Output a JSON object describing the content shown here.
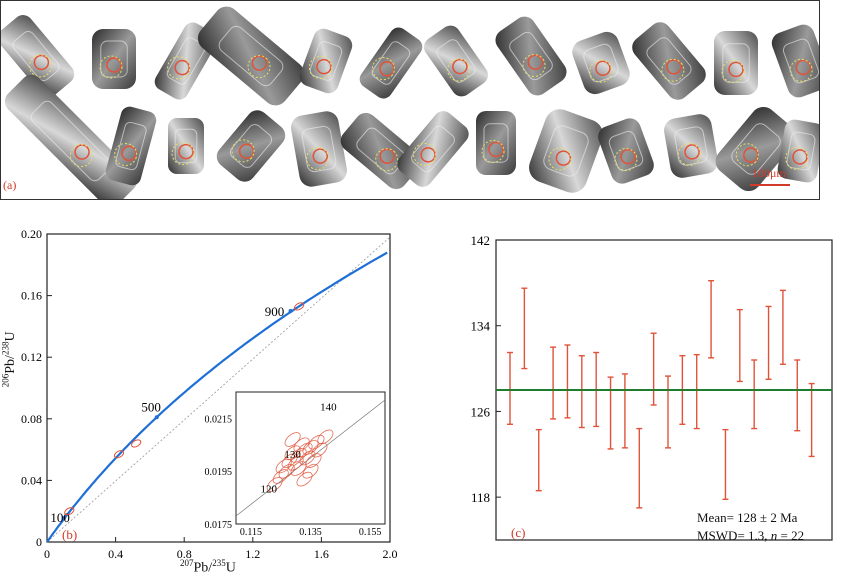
{
  "panel_a": {
    "label": "(a)",
    "scale_bar": "100μm"
  },
  "panel_b": {
    "label": "(b)",
    "concordia_ages": [
      "100",
      "500",
      "900"
    ],
    "x_ticks": [
      "0",
      "0.4",
      "0.8",
      "1.2",
      "1.6",
      "2.0"
    ],
    "y_ticks": [
      "0",
      "0.04",
      "0.08",
      "0.12",
      "0.16",
      "0.20"
    ],
    "inset": {
      "ages": [
        "120",
        "130",
        "140"
      ],
      "x_ticks": [
        "0.115",
        "0.135",
        "0.155"
      ],
      "y_ticks": [
        "0.0175",
        "0.0195",
        "0.0215"
      ]
    },
    "colors": {
      "concordia": "#1f6fd6",
      "ellipse": "#e0533a",
      "reference": "#999999"
    }
  },
  "panel_c": {
    "label": "(c)",
    "y_ticks": [
      "142",
      "134",
      "126",
      "118"
    ],
    "mean_text": "Mean= 128 ± 2 Ma",
    "mswd_prefix": "MSWD= 1.3, ",
    "mswd_n_symbol": "n",
    "mswd_n_value": " = 22",
    "colors": {
      "bars": "#e0533a",
      "mean_line": "#1e7d2f"
    }
  },
  "chart_data": [
    {
      "type": "scatter",
      "xlim": [
        0,
        2.0
      ],
      "ylim": [
        0,
        0.2
      ],
      "concordia_age_markers": [
        {
          "age": "100",
          "x": 0.1,
          "y": 0.0156
        },
        {
          "age": "500",
          "x": 0.64,
          "y": 0.081
        },
        {
          "age": "900",
          "x": 1.42,
          "y": 0.15
        }
      ],
      "series": [
        {
          "values": [
            {
              "x": 0.13,
              "y": 0.02
            },
            {
              "x": 0.42,
              "y": 0.057
            },
            {
              "x": 0.52,
              "y": 0.064
            },
            {
              "x": 1.47,
              "y": 0.153
            }
          ]
        }
      ]
    },
    {
      "type": "scatter",
      "xlim": [
        0.11,
        0.16
      ],
      "ylim": [
        0.0175,
        0.0225
      ],
      "series": [
        {
          "values": [
            {
              "x": 0.128,
              "y": 0.0199
            },
            {
              "x": 0.131,
              "y": 0.0201
            },
            {
              "x": 0.133,
              "y": 0.0203
            },
            {
              "x": 0.126,
              "y": 0.0197
            },
            {
              "x": 0.135,
              "y": 0.0204
            },
            {
              "x": 0.13,
              "y": 0.0198
            },
            {
              "x": 0.137,
              "y": 0.0206
            },
            {
              "x": 0.129,
              "y": 0.0202
            },
            {
              "x": 0.134,
              "y": 0.02
            },
            {
              "x": 0.127,
              "y": 0.0195
            },
            {
              "x": 0.138,
              "y": 0.0203
            },
            {
              "x": 0.132,
              "y": 0.0205
            },
            {
              "x": 0.125,
              "y": 0.0193
            },
            {
              "x": 0.136,
              "y": 0.0199
            },
            {
              "x": 0.123,
              "y": 0.019
            },
            {
              "x": 0.14,
              "y": 0.0208
            },
            {
              "x": 0.131,
              "y": 0.0196
            },
            {
              "x": 0.133,
              "y": 0.0192
            },
            {
              "x": 0.129,
              "y": 0.0207
            },
            {
              "x": 0.135,
              "y": 0.0195
            }
          ]
        }
      ]
    },
    {
      "type": "bar",
      "ylim": [
        114,
        142
      ],
      "mean": 128,
      "series": [
        {
          "values": [
            {
              "lo": 124.8,
              "hi": 131.5
            },
            {
              "lo": 130.0,
              "hi": 137.5
            },
            {
              "lo": 118.6,
              "hi": 124.3
            },
            {
              "lo": 125.3,
              "hi": 132.0
            },
            {
              "lo": 125.4,
              "hi": 132.2
            },
            {
              "lo": 124.5,
              "hi": 131.2
            },
            {
              "lo": 124.6,
              "hi": 131.5
            },
            {
              "lo": 122.5,
              "hi": 129.2
            },
            {
              "lo": 122.6,
              "hi": 129.5
            },
            {
              "lo": 117.0,
              "hi": 124.4
            },
            {
              "lo": 126.6,
              "hi": 133.3
            },
            {
              "lo": 122.6,
              "hi": 129.3
            },
            {
              "lo": 124.8,
              "hi": 131.2
            },
            {
              "lo": 124.4,
              "hi": 131.3
            },
            {
              "lo": 131.0,
              "hi": 138.2
            },
            {
              "lo": 117.8,
              "hi": 124.3
            },
            {
              "lo": 128.8,
              "hi": 135.5
            },
            {
              "lo": 124.4,
              "hi": 130.8
            },
            {
              "lo": 129.0,
              "hi": 135.8
            },
            {
              "lo": 130.4,
              "hi": 137.3
            },
            {
              "lo": 124.2,
              "hi": 130.8
            },
            {
              "lo": 121.8,
              "hi": 128.6
            }
          ]
        }
      ]
    }
  ]
}
